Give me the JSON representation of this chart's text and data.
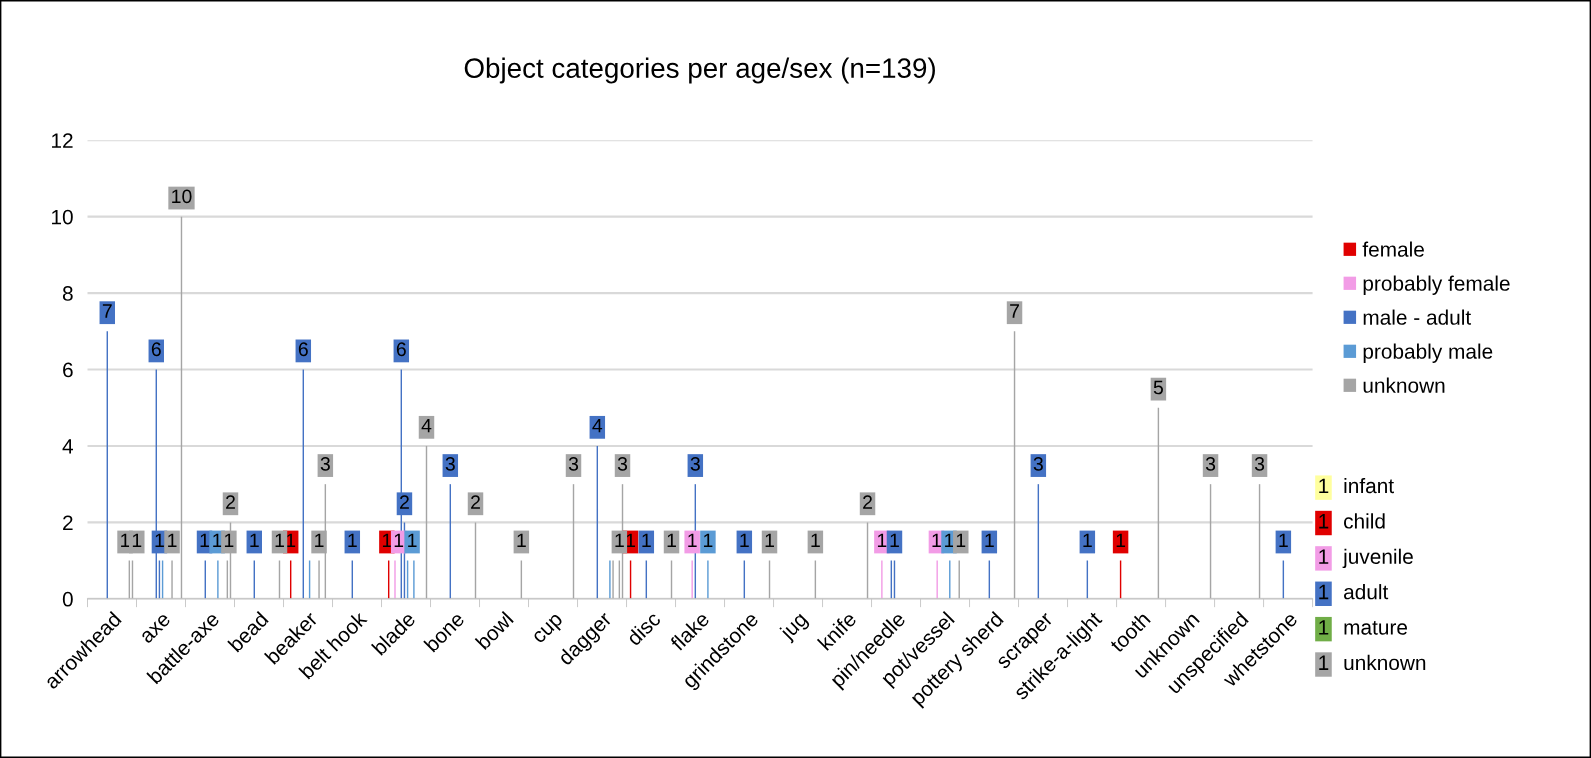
{
  "chart_data": [
    {
      "type": "bar",
      "title": "Object categories per age/sex (n=139)",
      "categories": [
        "arrowhead",
        "axe",
        "battle-axe",
        "bead",
        "beaker",
        "belt hook",
        "blade",
        "bone",
        "bowl",
        "cup",
        "dagger",
        "disc",
        "flake",
        "grindstone",
        "jug",
        "knife",
        "pin/needle",
        "pot/vessel",
        "pottery sherd",
        "scraper",
        "strike-a-light",
        "tooth",
        "unknown",
        "unspecified",
        "whetstone"
      ],
      "ylim": [
        0,
        12
      ],
      "yticks": [
        0,
        2,
        4,
        6,
        8,
        10,
        12
      ],
      "grid": "y",
      "legend": "right",
      "series": [
        {
          "name": "female",
          "color": "#e00000",
          "values": [
            null,
            null,
            null,
            null,
            null,
            null,
            null,
            null,
            null,
            null,
            null,
            1,
            null,
            null,
            null,
            null,
            null,
            null,
            null,
            null,
            null,
            1,
            null,
            null,
            null
          ],
          "value_labels": [
            null,
            null,
            null,
            null,
            null,
            null,
            null,
            null,
            null,
            null,
            null,
            "1",
            null,
            null,
            null,
            null,
            null,
            null,
            null,
            null,
            null,
            "1",
            null,
            null,
            null
          ]
        },
        {
          "color": "#e00000",
          "values": [
            null,
            null,
            null,
            null,
            1,
            null,
            1,
            null,
            null,
            null,
            null,
            null,
            null,
            null,
            null,
            null,
            null,
            null,
            null,
            null,
            null,
            null,
            null,
            null,
            null
          ],
          "value_labels": [
            null,
            null,
            null,
            null,
            "1",
            null,
            "1",
            null,
            null,
            null,
            null,
            null,
            null,
            null,
            null,
            null,
            null,
            null,
            null,
            null,
            null,
            null,
            null,
            null,
            null
          ]
        },
        {
          "name": "probably female",
          "color": "#f29ce6",
          "values": [
            null,
            null,
            null,
            null,
            null,
            null,
            null,
            null,
            null,
            null,
            null,
            null,
            null,
            null,
            null,
            null,
            1,
            null,
            null,
            null,
            null,
            null,
            null,
            null,
            null
          ],
          "value_labels": [
            null,
            null,
            null,
            null,
            null,
            null,
            null,
            null,
            null,
            null,
            null,
            null,
            null,
            null,
            null,
            null,
            "1",
            null,
            null,
            null,
            null,
            null,
            null,
            null,
            null
          ]
        },
        {
          "color": "#f29ce6",
          "values": [
            null,
            null,
            null,
            null,
            null,
            null,
            1,
            null,
            null,
            null,
            null,
            null,
            null,
            null,
            null,
            null,
            null,
            null,
            null,
            null,
            null,
            null,
            null,
            null,
            null
          ],
          "value_labels": [
            null,
            null,
            null,
            null,
            null,
            null,
            "1",
            null,
            null,
            null,
            null,
            null,
            null,
            null,
            null,
            null,
            null,
            null,
            null,
            null,
            null,
            null,
            null,
            null,
            null
          ]
        },
        {
          "color": "#f29ce6",
          "values": [
            null,
            null,
            null,
            null,
            null,
            null,
            null,
            null,
            null,
            null,
            null,
            null,
            1,
            null,
            null,
            null,
            null,
            1,
            null,
            null,
            null,
            null,
            null,
            null,
            null
          ],
          "value_labels": [
            null,
            null,
            null,
            null,
            null,
            null,
            null,
            null,
            null,
            null,
            null,
            null,
            "1",
            null,
            null,
            null,
            null,
            "1",
            null,
            null,
            null,
            null,
            null,
            null,
            null
          ]
        },
        {
          "name": "male - adult",
          "color": "#4472c4",
          "values": [
            7,
            6,
            1,
            1,
            6,
            1,
            6,
            3,
            null,
            null,
            4,
            1,
            3,
            1,
            null,
            null,
            1,
            null,
            1,
            3,
            1,
            null,
            null,
            null,
            1
          ],
          "value_labels": [
            "7",
            "6",
            "1",
            "1",
            "6",
            "1",
            "6",
            "3",
            null,
            null,
            "4",
            "1",
            "3",
            "1",
            null,
            null,
            null,
            null,
            "1",
            "3",
            "1",
            null,
            null,
            null,
            "1"
          ]
        },
        {
          "color": "#4472c4",
          "values": [
            null,
            1,
            null,
            null,
            null,
            null,
            2,
            null,
            null,
            null,
            null,
            null,
            null,
            null,
            null,
            null,
            1,
            null,
            null,
            null,
            null,
            null,
            null,
            null,
            null
          ],
          "value_labels": [
            null,
            "1",
            null,
            null,
            null,
            null,
            "2",
            null,
            null,
            null,
            null,
            null,
            null,
            null,
            null,
            null,
            "1",
            null,
            null,
            null,
            null,
            null,
            null,
            null,
            null
          ]
        },
        {
          "name": "probably male",
          "color": "#5b9bd5",
          "values": [
            null,
            1,
            null,
            null,
            1,
            null,
            1,
            null,
            null,
            null,
            null,
            null,
            null,
            null,
            null,
            null,
            null,
            null,
            null,
            null,
            null,
            null,
            null,
            null,
            null
          ]
        },
        {
          "color": "#5b9bd5",
          "values": [
            null,
            null,
            null,
            null,
            null,
            null,
            null,
            null,
            null,
            null,
            null,
            null,
            null,
            null,
            null,
            null,
            null,
            1,
            null,
            null,
            null,
            null,
            null,
            null,
            null
          ],
          "value_labels": [
            null,
            null,
            null,
            null,
            null,
            null,
            null,
            null,
            null,
            null,
            null,
            null,
            null,
            null,
            null,
            null,
            null,
            "1",
            null,
            null,
            null,
            null,
            null,
            null,
            null
          ]
        },
        {
          "color": "#5b9bd5",
          "values": [
            null,
            null,
            1,
            null,
            null,
            null,
            1,
            null,
            null,
            null,
            1,
            null,
            1,
            null,
            null,
            null,
            null,
            null,
            null,
            null,
            null,
            null,
            null,
            null,
            null
          ],
          "value_labels": [
            null,
            null,
            "1",
            null,
            null,
            null,
            "1",
            null,
            null,
            null,
            null,
            null,
            "1",
            null,
            null,
            null,
            null,
            null,
            null,
            null,
            null,
            null,
            null,
            null,
            null
          ]
        },
        {
          "name": "unknown",
          "color": "#a5a5a5",
          "values": [
            null,
            1,
            null,
            null,
            1,
            null,
            null,
            null,
            null,
            null,
            1,
            null,
            null,
            null,
            null,
            null,
            null,
            null,
            null,
            null,
            null,
            null,
            null,
            null,
            null
          ],
          "value_labels": [
            null,
            "1",
            null,
            null,
            "1",
            null,
            null,
            null,
            null,
            null,
            null,
            null,
            null,
            null,
            null,
            null,
            null,
            null,
            null,
            null,
            null,
            null,
            null,
            null,
            null
          ]
        },
        {
          "color": "#a5a5a5",
          "values": [
            null,
            null,
            null,
            null,
            null,
            null,
            null,
            null,
            null,
            null,
            null,
            null,
            null,
            null,
            null,
            null,
            null,
            1,
            null,
            null,
            null,
            null,
            null,
            null,
            null
          ],
          "value_labels": [
            null,
            null,
            null,
            null,
            null,
            null,
            null,
            null,
            null,
            null,
            null,
            null,
            null,
            null,
            null,
            null,
            null,
            "1",
            null,
            null,
            null,
            null,
            null,
            null,
            null
          ]
        },
        {
          "color": "#a5a5a5",
          "values": [
            1,
            null,
            1,
            null,
            3,
            null,
            null,
            null,
            1,
            null,
            1,
            null,
            null,
            null,
            1,
            null,
            null,
            null,
            null,
            null,
            null,
            5,
            null,
            null,
            null
          ],
          "value_labels": [
            "1",
            null,
            "1",
            null,
            "3",
            null,
            null,
            null,
            "1",
            null,
            "1",
            null,
            null,
            null,
            "1",
            null,
            null,
            null,
            null,
            null,
            null,
            "5",
            null,
            null,
            null
          ]
        },
        {
          "color": "#a5a5a5",
          "values": [
            1,
            10,
            2,
            1,
            null,
            null,
            4,
            2,
            null,
            3,
            3,
            1,
            null,
            1,
            null,
            2,
            null,
            null,
            7,
            null,
            null,
            null,
            3,
            3,
            null
          ],
          "value_labels": [
            "1",
            "10",
            "2",
            "1",
            null,
            null,
            "4",
            "2",
            null,
            "3",
            "3",
            "1",
            null,
            "1",
            null,
            "2",
            null,
            null,
            "7",
            null,
            null,
            null,
            "3",
            "3",
            null
          ]
        }
      ]
    },
    {
      "type": "other",
      "categories": [
        "infant",
        "child",
        "juvenile",
        "adult",
        "mature",
        "unknown"
      ],
      "values": [
        1,
        1,
        1,
        1,
        1,
        1
      ],
      "data_labels": true,
      "colors": [
        "#ffff9e",
        "#e00000",
        "#f29ce6",
        "#4472c4",
        "#70ad47",
        "#a5a5a5"
      ]
    }
  ]
}
